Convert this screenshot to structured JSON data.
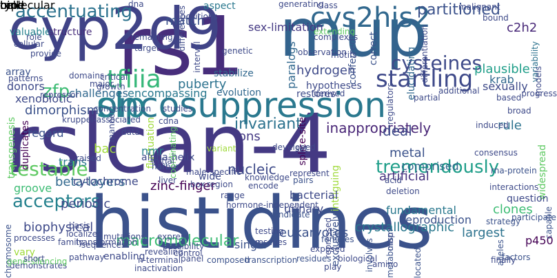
{
  "words": [
    {
      "text": "rslcan-4",
      "color": "#443983"
    },
    {
      "text": "histidines",
      "color": "#3b528b"
    },
    {
      "text": "rs1",
      "color": "#472d7b"
    },
    {
      "text": "cyp2d9",
      "color": "#404387"
    },
    {
      "text": "mup",
      "color": "#33638d"
    },
    {
      "text": "oncosuppression",
      "color": "#2a788e"
    },
    {
      "text": "slp",
      "color": "#26828e"
    },
    {
      "text": "cys2his2",
      "color": "#31688e"
    },
    {
      "text": "tfiiia",
      "color": "#35b779"
    },
    {
      "text": "accentuating",
      "color": "#2c728e"
    },
    {
      "text": "startling",
      "color": "#3e4989"
    },
    {
      "text": "cysteines",
      "color": "#3e4a89"
    },
    {
      "text": "testable",
      "color": "#5ec962"
    },
    {
      "text": "tremendously",
      "color": "#1f9e89"
    },
    {
      "text": "macromolecular",
      "color": "#3dbc74"
    },
    {
      "text": "acceptors",
      "color": "#26828e"
    },
    {
      "text": "zfp",
      "color": "#3dbc74"
    },
    {
      "text": "partitioned",
      "color": "#3b528b"
    },
    {
      "text": "inappropriately",
      "color": "#482576"
    },
    {
      "text": "crystallographic",
      "color": "#2a788e"
    },
    {
      "text": "biophysical",
      "color": "#3e4989"
    },
    {
      "text": "eukaryotes",
      "color": "#3b528b"
    },
    {
      "text": "plausible",
      "color": "#1f9e89"
    },
    {
      "text": "dimorphism",
      "color": "#3b528b"
    },
    {
      "text": "nucleic",
      "color": "#3e4a89"
    },
    {
      "text": "invariant",
      "color": "#2c728e"
    },
    {
      "text": "transgenesis",
      "color": "#5ec962"
    },
    {
      "text": "duplicates",
      "color": "#440154"
    },
    {
      "text": "clones",
      "color": "#3dbc74"
    },
    {
      "text": "hydrogen",
      "color": "#3e4a89"
    },
    {
      "text": "ions",
      "color": "#443983"
    },
    {
      "text": "metal",
      "color": "#3b528b"
    },
    {
      "text": "deal",
      "color": "#3e4a89"
    },
    {
      "text": "artificial",
      "color": "#46327e"
    },
    {
      "text": "fluctuation",
      "color": "#9fda3a"
    },
    {
      "text": "periodic",
      "color": "#3e4989"
    },
    {
      "text": "groove",
      "color": "#3dbc74"
    },
    {
      "text": "largest",
      "color": "#2c728e"
    },
    {
      "text": "paralogs",
      "color": "#31688e"
    },
    {
      "text": "puberty",
      "color": "#2c728e"
    },
    {
      "text": "encompassing",
      "color": "#2a788e"
    },
    {
      "text": "sex-limitation",
      "color": "#443983"
    },
    {
      "text": "c2h2",
      "color": "#482878"
    },
    {
      "text": "match",
      "color": "#3b528b"
    },
    {
      "text": "krab",
      "color": "#31688e"
    },
    {
      "text": "sexually",
      "color": "#3e4a89"
    },
    {
      "text": "rule",
      "color": "#2c728e"
    },
    {
      "text": "p450",
      "color": "#440154"
    },
    {
      "text": "widespread",
      "color": "#5ec962"
    },
    {
      "text": "nmr",
      "color": "#26828e"
    },
    {
      "text": "bac",
      "color": "#9fda3a"
    },
    {
      "text": "trans",
      "color": "#2a788e"
    },
    {
      "text": "zinc-finger",
      "color": "#440154"
    },
    {
      "text": "beta-layers",
      "color": "#31688e"
    },
    {
      "text": "intriguing",
      "color": "#9fda3a"
    },
    {
      "text": "urinary",
      "color": "#3e4a89"
    },
    {
      "text": "splice-site",
      "color": "#440154"
    },
    {
      "text": "reproduction",
      "color": "#3b528b"
    },
    {
      "text": "fundamental",
      "color": "#2a788e"
    },
    {
      "text": "question",
      "color": "#3e4989"
    },
    {
      "text": "bacterial",
      "color": "#3e4a89"
    },
    {
      "text": "single",
      "color": "#3b528b"
    },
    {
      "text": "exclusively",
      "color": "#3b528b"
    },
    {
      "text": "comprised",
      "color": "#31688e"
    },
    {
      "text": "cytochrome",
      "color": "#3e4a89"
    },
    {
      "text": "regard",
      "color": "#3b528b"
    },
    {
      "text": "xenobiotic",
      "color": "#3e4a89"
    },
    {
      "text": "donors",
      "color": "#3e4a89"
    },
    {
      "text": "challenges",
      "color": "#31688e"
    },
    {
      "text": "array",
      "color": "#3b528b"
    },
    {
      "text": "valuable",
      "color": "#26828e"
    },
    {
      "text": "structure",
      "color": "#472d7b"
    },
    {
      "text": "stabilize",
      "color": "#31688e"
    },
    {
      "text": "hypotheses",
      "color": "#3e4a89"
    },
    {
      "text": "evolution",
      "color": "#31688e"
    },
    {
      "text": "restores",
      "color": "#3e4a89"
    },
    {
      "text": "extending",
      "color": "#5ec962"
    },
    {
      "text": "aspect",
      "color": "#2a788e"
    },
    {
      "text": "conferred",
      "color": "#3b528b"
    },
    {
      "text": "correct",
      "color": "#3b528b"
    },
    {
      "text": "elucidating",
      "color": "#31688e"
    },
    {
      "text": "variability",
      "color": "#2c728e"
    },
    {
      "text": "alpha-helix",
      "color": "#3e4989"
    },
    {
      "text": "harbor",
      "color": "#3b528b"
    },
    {
      "text": "raised",
      "color": "#3e4a89"
    },
    {
      "text": "wide",
      "color": "#3e4a89"
    },
    {
      "text": "coordinating",
      "color": "#5ec962"
    },
    {
      "text": "male-specific",
      "color": "#3e4a89"
    },
    {
      "text": "vary",
      "color": "#9fda3a"
    },
    {
      "text": "enabling",
      "color": "#3e4a89"
    },
    {
      "text": "sequences",
      "color": "#3e4a89"
    },
    {
      "text": "chromosome",
      "color": "#3b528b"
    },
    {
      "text": "composed",
      "color": "#3b528b"
    },
    {
      "text": "rescues",
      "color": "#3e4a89"
    },
    {
      "text": "repressed",
      "color": "#3e4a89"
    },
    {
      "text": "candidate",
      "color": "#3b528b"
    },
    {
      "text": "testing",
      "color": "#3e4989"
    },
    {
      "text": "exposed",
      "color": "#3e4a89"
    },
    {
      "text": "females",
      "color": "#3b528b"
    },
    {
      "text": "encode",
      "color": "#3e4a89"
    },
    {
      "text": "region",
      "color": "#3e4a89"
    },
    {
      "text": "range",
      "color": "#3e4a89"
    },
    {
      "text": "knowledge",
      "color": "#3e4a89"
    },
    {
      "text": "represent",
      "color": "#3e4a89"
    },
    {
      "text": "pairs",
      "color": "#3b528b"
    },
    {
      "text": "rna-protein",
      "color": "#3b528b"
    },
    {
      "text": "map",
      "color": "#3e4a89"
    },
    {
      "text": "involves",
      "color": "#3b528b"
    },
    {
      "text": "alleles",
      "color": "#3b528b"
    },
    {
      "text": "strategy",
      "color": "#3b528b"
    },
    {
      "text": "participate",
      "color": "#3b528b"
    },
    {
      "text": "capable",
      "color": "#3b528b"
    },
    {
      "text": "factors",
      "color": "#3b528b"
    },
    {
      "text": "located",
      "color": "#3b528b"
    },
    {
      "text": "metabolism",
      "color": "#3b528b"
    },
    {
      "text": "residues",
      "color": "#3b528b"
    },
    {
      "text": "transcription",
      "color": "#3b528b"
    },
    {
      "text": "amino",
      "color": "#3e4a89"
    },
    {
      "text": "inactivation",
      "color": "#3e4a89"
    },
    {
      "text": "demonstrates",
      "color": "#3e4a89"
    },
    {
      "text": "gene-silencing",
      "color": "#5ec962"
    },
    {
      "text": "mutations",
      "color": "#3e4a89"
    },
    {
      "text": "basis",
      "color": "#3e4a89"
    },
    {
      "text": "localized",
      "color": "#3e4a89"
    },
    {
      "text": "processes",
      "color": "#3e4a89"
    },
    {
      "text": "transformation",
      "color": "#3e4a89"
    },
    {
      "text": "possibility",
      "color": "#3e4a89"
    },
    {
      "text": "n-terminal",
      "color": "#3e4a89"
    },
    {
      "text": "revealing",
      "color": "#3e4a89"
    },
    {
      "text": "express",
      "color": "#3e4a89"
    },
    {
      "text": "control",
      "color": "#3e4a89"
    },
    {
      "text": "panel",
      "color": "#3e4a89"
    },
    {
      "text": "box",
      "color": "#3e4a89"
    },
    {
      "text": "liver",
      "color": "#3e4a89"
    },
    {
      "text": "hormone-independent",
      "color": "#3e4a89"
    },
    {
      "text": "variant",
      "color": "#9fda3a"
    },
    {
      "text": "initial",
      "color": "#3e4a89"
    },
    {
      "text": "data",
      "color": "#3e4a89"
    },
    {
      "text": "cdna",
      "color": "#3e4a89"
    },
    {
      "text": "induced",
      "color": "#3e4a89"
    },
    {
      "text": "set",
      "color": "#3e4a89"
    },
    {
      "text": "developed",
      "color": "#3e4a89"
    },
    {
      "text": "derived",
      "color": "#3e4a89"
    },
    {
      "text": "partial",
      "color": "#3e4a89"
    },
    {
      "text": "additional",
      "color": "#3e4a89"
    },
    {
      "text": "acid",
      "color": "#3e4a89"
    },
    {
      "text": "deletion",
      "color": "#3e4a89"
    },
    {
      "text": "interactions",
      "color": "#3e4a89"
    },
    {
      "text": "consensus",
      "color": "#3e4a89"
    },
    {
      "text": "broad",
      "color": "#3e4a89"
    },
    {
      "text": "based",
      "color": "#3e4a89"
    },
    {
      "text": "progress",
      "color": "#3e4a89"
    },
    {
      "text": "models",
      "color": "#3e4a89"
    },
    {
      "text": "bound",
      "color": "#3e4a89"
    },
    {
      "text": "malignant",
      "color": "#3e4a89"
    },
    {
      "text": "differentiation",
      "color": "#3e4a89"
    },
    {
      "text": "regulators",
      "color": "#3e4a89"
    },
    {
      "text": "motifs",
      "color": "#3e4a89"
    },
    {
      "text": "observation",
      "color": "#3e4a89"
    },
    {
      "text": "generating",
      "color": "#3e4a89"
    },
    {
      "text": "class",
      "color": "#3e4a89"
    },
    {
      "text": "complexes",
      "color": "#3e4a89"
    },
    {
      "text": "genetic",
      "color": "#3e4a89"
    },
    {
      "text": "interval",
      "color": "#3e4a89"
    },
    {
      "text": "differences",
      "color": "#3e4a89"
    },
    {
      "text": "studies",
      "color": "#3e4a89"
    },
    {
      "text": "growth",
      "color": "#3e4a89"
    },
    {
      "text": "concentration",
      "color": "#3e4a89"
    },
    {
      "text": "kruppel-associated",
      "color": "#3e4a89"
    },
    {
      "text": "repressor",
      "color": "#3e4a89"
    },
    {
      "text": "major",
      "color": "#3e4a89"
    },
    {
      "text": "critical",
      "color": "#3e4a89"
    },
    {
      "text": "domains",
      "color": "#3e4a89"
    },
    {
      "text": "patterns",
      "color": "#3e4a89"
    },
    {
      "text": "provide",
      "color": "#3e4a89"
    },
    {
      "text": "cellular",
      "color": "#3e4a89"
    },
    {
      "text": "role",
      "color": "#3e4a89"
    },
    {
      "text": "remaining",
      "color": "#3e4a89"
    },
    {
      "text": "target",
      "color": "#3e4a89"
    },
    {
      "text": "positions",
      "color": "#3e4a89"
    },
    {
      "text": "dna",
      "color": "#3e4a89"
    },
    {
      "text": "short",
      "color": "#3e4a89"
    },
    {
      "text": "pathway",
      "color": "#3e4a89"
    },
    {
      "text": "family",
      "color": "#3e4a89"
    },
    {
      "text": "manner",
      "color": "#3e4a89"
    },
    {
      "text": "finally",
      "color": "#3e4a89"
    },
    {
      "text": "play",
      "color": "#3e4a89"
    },
    {
      "text": "biological",
      "color": "#3e4a89"
    },
    {
      "text": "molecular",
      "color": "#3e4a89"
    },
    {
      "text": "bind",
      "color": "#3e4a89"
    },
    {
      "text": "type",
      "color": "#3e4a89"
    },
    {
      "text": "cell",
      "color": "#3e4a89"
    }
  ]
}
